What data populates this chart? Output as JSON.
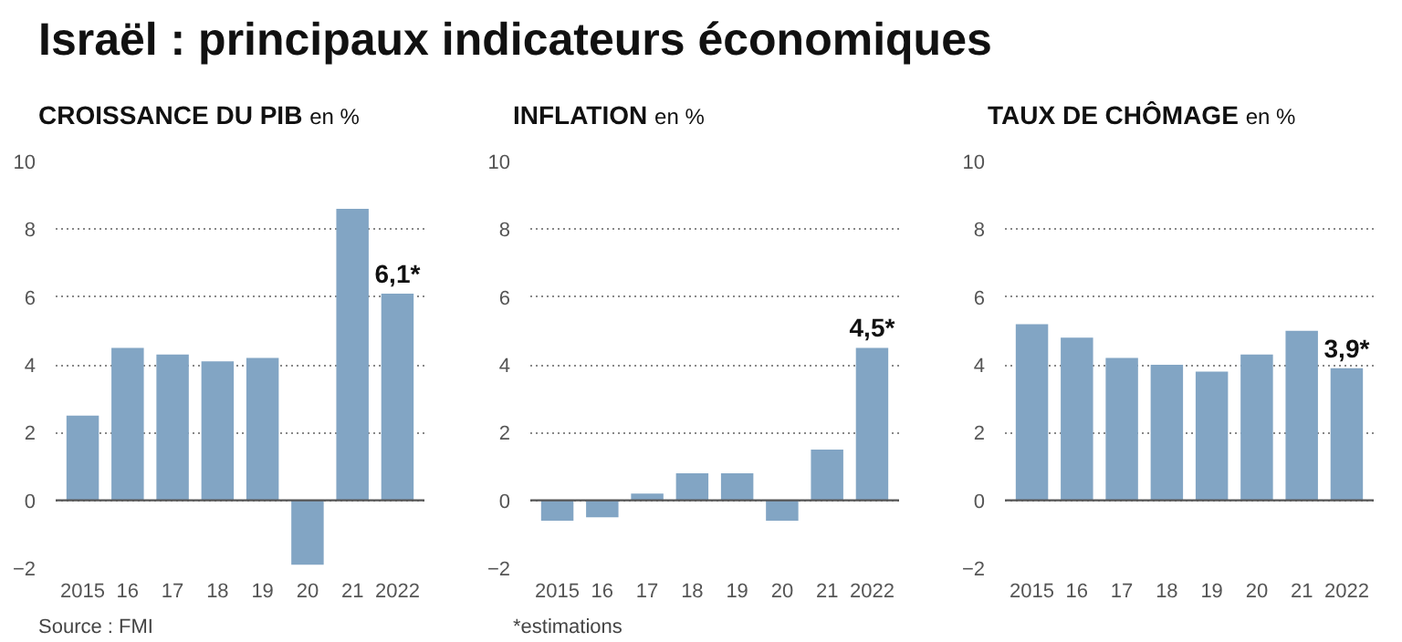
{
  "chart_data": [
    {
      "type": "bar",
      "title": "CROISSANCE DU PIB",
      "subtitle": "en %",
      "categories": [
        "2015",
        "16",
        "17",
        "18",
        "19",
        "20",
        "21",
        "2022"
      ],
      "values": [
        2.5,
        4.5,
        4.3,
        4.1,
        4.2,
        -1.9,
        8.6,
        6.1
      ],
      "value_labels": [
        null,
        null,
        null,
        null,
        null,
        null,
        null,
        "6,1*"
      ],
      "color": "#82a5c4",
      "ylim": [
        -2,
        10
      ],
      "yticks": [
        -2,
        0,
        2,
        4,
        6,
        8,
        10
      ],
      "grid": "y",
      "ref_lines": [
        {
          "axis": "y",
          "value": 0,
          "color": "#555555"
        }
      ],
      "annotations": [
        "Israël : principaux indicateurs économiques",
        "Source : FMI"
      ]
    },
    {
      "type": "bar",
      "title": "INFLATION",
      "subtitle": "en %",
      "categories": [
        "2015",
        "16",
        "17",
        "18",
        "19",
        "20",
        "21",
        "2022"
      ],
      "values": [
        -0.6,
        -0.5,
        0.2,
        0.8,
        0.8,
        -0.6,
        1.5,
        4.5
      ],
      "value_labels": [
        null,
        null,
        null,
        null,
        null,
        null,
        null,
        "4,5*"
      ],
      "color": "#82a5c4",
      "ylim": [
        -2,
        10
      ],
      "yticks": [
        -2,
        0,
        2,
        4,
        6,
        8,
        10
      ],
      "grid": "y",
      "ref_lines": [
        {
          "axis": "y",
          "value": 0,
          "color": "#555555"
        }
      ],
      "annotations": [
        "*estimations"
      ]
    },
    {
      "type": "bar",
      "title": "TAUX DE CHÔMAGE",
      "subtitle": "en %",
      "categories": [
        "2015",
        "16",
        "17",
        "18",
        "19",
        "20",
        "21",
        "2022"
      ],
      "values": [
        5.2,
        4.8,
        4.2,
        4.0,
        3.8,
        4.3,
        5.0,
        3.9
      ],
      "value_labels": [
        null,
        null,
        null,
        null,
        null,
        null,
        null,
        "3,9*"
      ],
      "color": "#82a5c4",
      "ylim": [
        -2,
        10
      ],
      "yticks": [
        -2,
        0,
        2,
        4,
        6,
        8,
        10
      ],
      "grid": "y",
      "ref_lines": [
        {
          "axis": "y",
          "value": 0,
          "color": "#555555"
        }
      ]
    }
  ]
}
